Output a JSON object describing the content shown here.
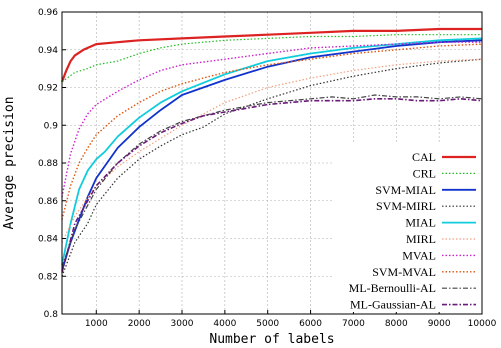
{
  "chart_data": {
    "type": "line",
    "xlabel": "Number of labels",
    "ylabel": "Average precision",
    "xlim": [
      200,
      10000
    ],
    "ylim": [
      0.8,
      0.96
    ],
    "xticks": [
      1000,
      2000,
      3000,
      4000,
      5000,
      6000,
      7000,
      8000,
      9000,
      10000
    ],
    "yticks": [
      0.8,
      0.82,
      0.84,
      0.86,
      0.88,
      0.9,
      0.92,
      0.94,
      0.96
    ],
    "xtick_labels": [
      "1000",
      "2000",
      "3000",
      "4000",
      "5000",
      "6000",
      "7000",
      "8000",
      "9000",
      "10000"
    ],
    "ytick_labels": [
      "0.8",
      "0.82",
      "0.84",
      "0.86",
      "0.88",
      "0.9",
      "0.92",
      "0.94",
      "0.96"
    ],
    "grid": "dashed",
    "legend_position": "bottom-right",
    "series": [
      {
        "name": "CAL",
        "color": "#dd2222",
        "style": "solid",
        "width": 2.2,
        "x": [
          200,
          300,
          400,
          500,
          700,
          1000,
          1500,
          2000,
          3000,
          4000,
          5000,
          6000,
          7000,
          8000,
          9000,
          10000
        ],
        "y": [
          0.923,
          0.929,
          0.934,
          0.937,
          0.94,
          0.943,
          0.944,
          0.945,
          0.946,
          0.947,
          0.948,
          0.949,
          0.95,
          0.95,
          0.951,
          0.951
        ]
      },
      {
        "name": "CRL",
        "color": "#22bb22",
        "style": "dotted",
        "width": 1.2,
        "x": [
          200,
          500,
          800,
          1000,
          1500,
          2000,
          2500,
          3000,
          4000,
          5000,
          6000,
          7000,
          8000,
          9000,
          10000
        ],
        "y": [
          0.923,
          0.928,
          0.93,
          0.932,
          0.934,
          0.938,
          0.941,
          0.943,
          0.945,
          0.946,
          0.947,
          0.947,
          0.948,
          0.948,
          0.948
        ]
      },
      {
        "name": "SVM-MIAL",
        "color": "#1133cc",
        "style": "solid",
        "width": 1.8,
        "x": [
          200,
          400,
          600,
          800,
          1000,
          1500,
          2000,
          2500,
          3000,
          4000,
          5000,
          6000,
          7000,
          8000,
          9000,
          10000
        ],
        "y": [
          0.823,
          0.838,
          0.85,
          0.862,
          0.872,
          0.888,
          0.899,
          0.908,
          0.916,
          0.924,
          0.931,
          0.936,
          0.939,
          0.942,
          0.944,
          0.945
        ]
      },
      {
        "name": "SVM-MIRL",
        "color": "#333333",
        "style": "dotted",
        "width": 1.2,
        "x": [
          200,
          500,
          800,
          1000,
          1500,
          2000,
          2500,
          3000,
          3500,
          4000,
          5000,
          6000,
          7000,
          8000,
          9000,
          10000
        ],
        "y": [
          0.82,
          0.838,
          0.848,
          0.858,
          0.872,
          0.882,
          0.889,
          0.895,
          0.899,
          0.906,
          0.914,
          0.921,
          0.926,
          0.93,
          0.933,
          0.935
        ]
      },
      {
        "name": "MIAL",
        "color": "#11ccdd",
        "style": "solid",
        "width": 1.8,
        "x": [
          200,
          400,
          600,
          800,
          1000,
          1200,
          1500,
          2000,
          2500,
          3000,
          4000,
          5000,
          6000,
          7000,
          8000,
          9000,
          10000
        ],
        "y": [
          0.826,
          0.848,
          0.866,
          0.876,
          0.882,
          0.886,
          0.894,
          0.904,
          0.912,
          0.918,
          0.927,
          0.934,
          0.938,
          0.941,
          0.943,
          0.945,
          0.946
        ]
      },
      {
        "name": "MIRL",
        "color": "#f0a080",
        "style": "dotted",
        "width": 1.2,
        "x": [
          200,
          500,
          1000,
          1500,
          2000,
          3000,
          4000,
          5000,
          6000,
          7000,
          8000,
          9000,
          10000
        ],
        "y": [
          0.838,
          0.852,
          0.868,
          0.878,
          0.886,
          0.9,
          0.912,
          0.92,
          0.925,
          0.929,
          0.932,
          0.934,
          0.935
        ]
      },
      {
        "name": "MVAL",
        "color": "#cc22cc",
        "style": "dotted",
        "width": 1.4,
        "x": [
          200,
          400,
          600,
          800,
          1000,
          1500,
          2000,
          2500,
          3000,
          4000,
          5000,
          6000,
          7000,
          8000,
          9000,
          10000
        ],
        "y": [
          0.862,
          0.885,
          0.898,
          0.906,
          0.911,
          0.918,
          0.924,
          0.929,
          0.932,
          0.935,
          0.938,
          0.941,
          0.942,
          0.943,
          0.944,
          0.944
        ]
      },
      {
        "name": "SVM-MVAL",
        "color": "#dd5511",
        "style": "dotted",
        "width": 1.4,
        "x": [
          200,
          400,
          600,
          800,
          1000,
          1500,
          2000,
          2500,
          3000,
          4000,
          5000,
          6000,
          7000,
          8000,
          9000,
          10000
        ],
        "y": [
          0.85,
          0.868,
          0.88,
          0.888,
          0.895,
          0.905,
          0.912,
          0.918,
          0.922,
          0.928,
          0.932,
          0.935,
          0.938,
          0.94,
          0.942,
          0.943
        ]
      },
      {
        "name": "ML-Bernoulli-AL",
        "color": "#444444",
        "style": "dashdot",
        "width": 1.2,
        "x": [
          200,
          500,
          1000,
          1500,
          2000,
          2500,
          3000,
          3500,
          4000,
          4500,
          5000,
          5500,
          6000,
          6500,
          7000,
          7500,
          8000,
          8500,
          9000,
          9500,
          10000
        ],
        "y": [
          0.825,
          0.845,
          0.866,
          0.88,
          0.89,
          0.897,
          0.902,
          0.905,
          0.908,
          0.91,
          0.912,
          0.913,
          0.914,
          0.915,
          0.914,
          0.916,
          0.915,
          0.915,
          0.914,
          0.915,
          0.914
        ]
      },
      {
        "name": "ML-Gaussian-AL",
        "color": "#6a1a7a",
        "style": "dashdot",
        "width": 1.6,
        "x": [
          200,
          500,
          1000,
          1500,
          2000,
          2500,
          3000,
          3500,
          4000,
          4500,
          5000,
          5500,
          6000,
          6500,
          7000,
          7500,
          8000,
          8500,
          9000,
          9500,
          10000
        ],
        "y": [
          0.822,
          0.848,
          0.868,
          0.88,
          0.889,
          0.896,
          0.901,
          0.905,
          0.907,
          0.909,
          0.911,
          0.912,
          0.913,
          0.913,
          0.913,
          0.914,
          0.914,
          0.913,
          0.913,
          0.914,
          0.913
        ]
      }
    ]
  }
}
